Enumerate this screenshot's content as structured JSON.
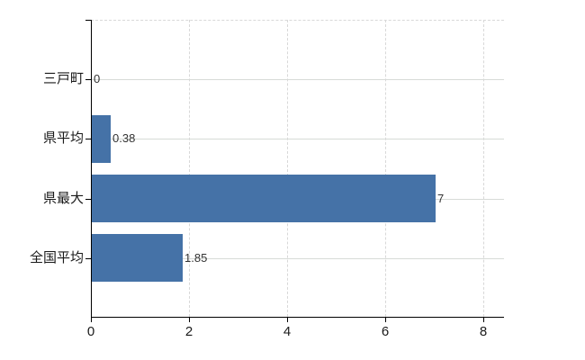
{
  "chart_data": {
    "type": "bar",
    "orientation": "horizontal",
    "title": "",
    "xlabel": "",
    "ylabel": "",
    "categories": [
      "三戸町",
      "県平均",
      "県最大",
      "全国平均"
    ],
    "values": [
      0,
      0.38,
      7,
      1.85
    ],
    "value_labels": [
      "0",
      "0.38",
      "7",
      "1.85"
    ],
    "xlim": [
      0,
      8.42
    ],
    "xticks": [
      0,
      2,
      4,
      6,
      8
    ],
    "xtick_labels": [
      "0",
      "2",
      "4",
      "6",
      "8"
    ],
    "grid": true,
    "legend": false,
    "colors": {
      "bar": "#4572a7",
      "grid_horizontal": "#d7dbd7",
      "grid_vertical": "#d8d8d8",
      "axis": "#000000",
      "category_label": "#1a1a1a",
      "tick_label": "#1a1a1a",
      "value_label": "#333333",
      "background": "#ffffff"
    }
  }
}
